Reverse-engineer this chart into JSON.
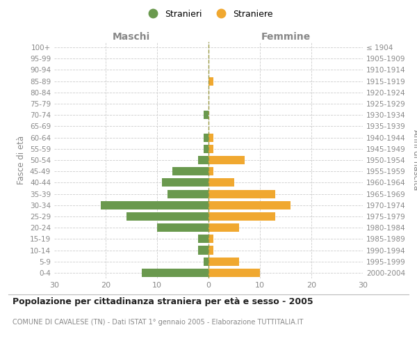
{
  "age_groups": [
    "0-4",
    "5-9",
    "10-14",
    "15-19",
    "20-24",
    "25-29",
    "30-34",
    "35-39",
    "40-44",
    "45-49",
    "50-54",
    "55-59",
    "60-64",
    "65-69",
    "70-74",
    "75-79",
    "80-84",
    "85-89",
    "90-94",
    "95-99",
    "100+"
  ],
  "birth_years": [
    "2000-2004",
    "1995-1999",
    "1990-1994",
    "1985-1989",
    "1980-1984",
    "1975-1979",
    "1970-1974",
    "1965-1969",
    "1960-1964",
    "1955-1959",
    "1950-1954",
    "1945-1949",
    "1940-1944",
    "1935-1939",
    "1930-1934",
    "1925-1929",
    "1920-1924",
    "1915-1919",
    "1910-1914",
    "1905-1909",
    "≤ 1904"
  ],
  "males": [
    13,
    1,
    2,
    2,
    10,
    16,
    21,
    8,
    9,
    7,
    2,
    1,
    1,
    0,
    1,
    0,
    0,
    0,
    0,
    0,
    0
  ],
  "females": [
    10,
    6,
    1,
    1,
    6,
    13,
    16,
    13,
    5,
    1,
    7,
    1,
    1,
    0,
    0,
    0,
    0,
    1,
    0,
    0,
    0
  ],
  "male_color": "#6a994e",
  "female_color": "#f0a830",
  "background_color": "#ffffff",
  "grid_color": "#cccccc",
  "title": "Popolazione per cittadinanza straniera per età e sesso - 2005",
  "subtitle": "COMUNE DI CAVALESE (TN) - Dati ISTAT 1° gennaio 2005 - Elaborazione TUTTITALIA.IT",
  "ylabel_left": "Fasce di età",
  "ylabel_right": "Anni di nascita",
  "header_left": "Maschi",
  "header_right": "Femmine",
  "legend_male": "Stranieri",
  "legend_female": "Straniere",
  "xlim": 30,
  "dashed_line_color": "#999944"
}
